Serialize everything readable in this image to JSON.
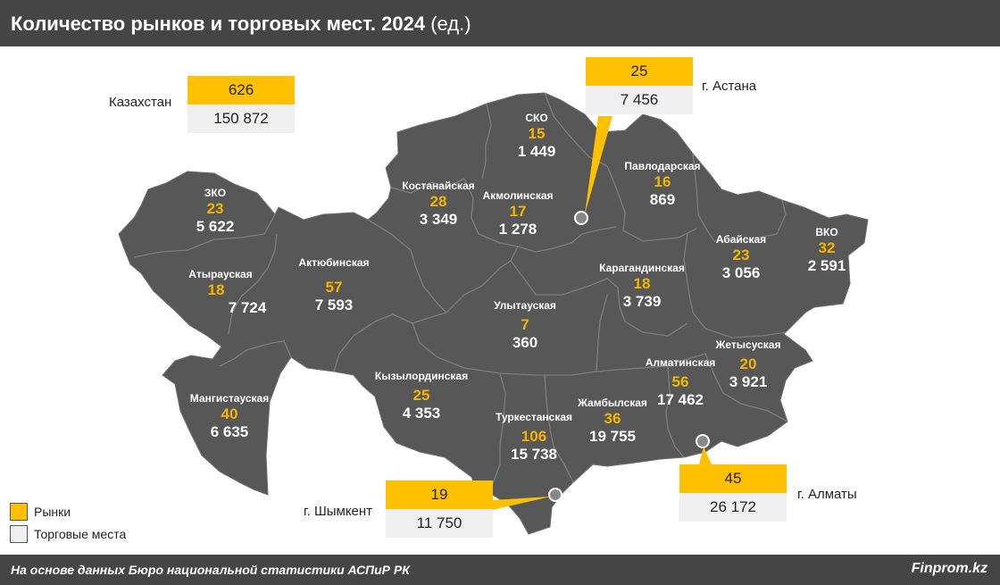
{
  "header": {
    "title": "Количество рынков и торговых мест. 2024",
    "unit": "(ед.)"
  },
  "footer": {
    "source": "На основе данных Бюро национальной статистики АСПиР РК",
    "brand": "Finprom.kz"
  },
  "colors": {
    "map_fill": "#575757",
    "markets": "#f5b400",
    "places": "#ffffff",
    "callout_markets_bg": "#ffc000",
    "callout_places_bg": "#efefef",
    "header_bg": "#454545"
  },
  "regions": [
    {
      "name": "ЗКО",
      "markets": "23",
      "places": "5 622"
    },
    {
      "name": "Атырауская",
      "markets": "18",
      "places": "7 724"
    },
    {
      "name": "Мангистауская",
      "markets": "40",
      "places": "6 635"
    },
    {
      "name": "Актюбинская",
      "markets": "57",
      "places": "7 593"
    },
    {
      "name": "Костанайская",
      "markets": "28",
      "places": "3 349"
    },
    {
      "name": "СКО",
      "markets": "15",
      "places": "1 449"
    },
    {
      "name": "Акмолинская",
      "markets": "17",
      "places": "1 278"
    },
    {
      "name": "Павлодарская",
      "markets": "16",
      "places": "869"
    },
    {
      "name": "ВКО",
      "markets": "32",
      "places": "2 591"
    },
    {
      "name": "Абайская",
      "markets": "23",
      "places": "3 056"
    },
    {
      "name": "Карагандинская",
      "markets": "18",
      "places": "3 739"
    },
    {
      "name": "Улытауская",
      "markets": "7",
      "places": "360"
    },
    {
      "name": "Кызылординская",
      "markets": "25",
      "places": "4 353"
    },
    {
      "name": "Туркестанская",
      "markets": "106",
      "places": "15 738"
    },
    {
      "name": "Жамбылская",
      "markets": "36",
      "places": "19 755"
    },
    {
      "name": "Алматинская",
      "markets": "56",
      "places": "17 462"
    },
    {
      "name": "Жетысуская",
      "markets": "20",
      "places": "3 921"
    }
  ],
  "callouts": {
    "kazakhstan": {
      "name": "Казахстан",
      "markets": "626",
      "places": "150 872"
    },
    "astana": {
      "name": "г. Астана",
      "markets": "25",
      "places": "7 456"
    },
    "shymkent": {
      "name": "г. Шымкент",
      "markets": "19",
      "places": "11 750"
    },
    "almaty": {
      "name": "г. Алматы",
      "markets": "45",
      "places": "26 172"
    }
  },
  "legend": [
    {
      "label": "Рынки",
      "color": "#ffc000"
    },
    {
      "label": "Торговые места",
      "color": "#efefef"
    }
  ]
}
